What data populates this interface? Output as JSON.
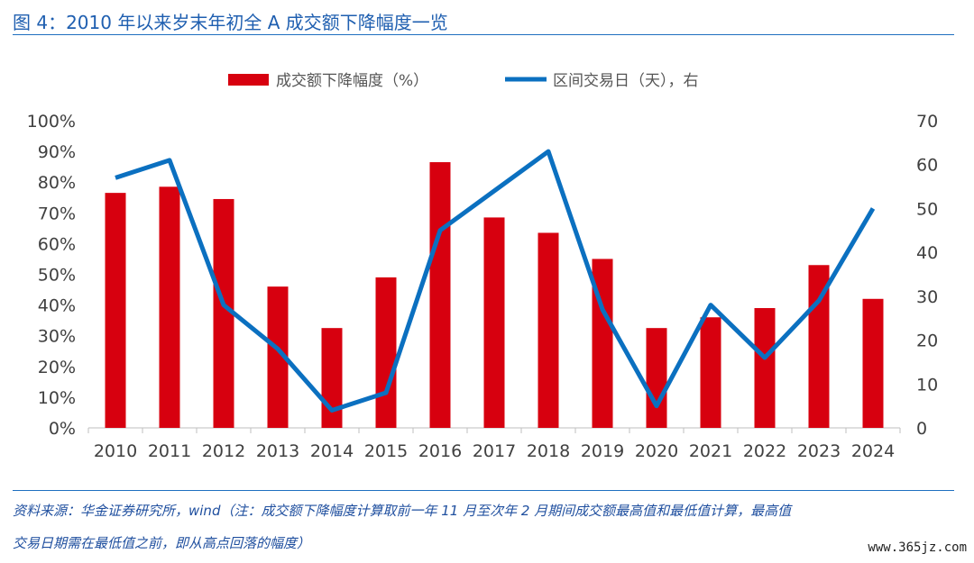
{
  "figure": {
    "title": "图 4：2010 年以来岁末年初全 A 成交额下降幅度一览",
    "source_line1": "资料来源：华金证券研究所，wind（注：成交额下降幅度计算取前一年 11 月至次年 2 月期间成交额最高值和最低值计算，最高值",
    "source_line2": "交易日期需在最低值之前，即从高点回落的幅度）",
    "watermark": "www.365jz.com"
  },
  "colors": {
    "bar": "#d7000f",
    "line": "#0b70c0",
    "title": "#1f5fb0",
    "rule": "#1f6fc0"
  },
  "chart_data": {
    "type": "bar",
    "categories": [
      "2010",
      "2011",
      "2012",
      "2013",
      "2014",
      "2015",
      "2016",
      "2017",
      "2018",
      "2019",
      "2020",
      "2021",
      "2022",
      "2023",
      "2024"
    ],
    "series": [
      {
        "name": "成交额下降幅度（%）",
        "type": "bar",
        "axis": "left",
        "values": [
          76.5,
          78.5,
          74.5,
          46,
          32.5,
          49,
          86.5,
          68.5,
          63.5,
          55,
          32.5,
          36,
          39,
          53,
          42
        ]
      },
      {
        "name": "区间交易日（天），右",
        "type": "line",
        "axis": "right",
        "values": [
          57,
          61,
          28,
          18,
          4,
          8,
          45,
          54,
          63,
          27,
          5,
          28,
          16,
          29,
          50
        ]
      }
    ],
    "y_left": {
      "min": 0,
      "max": 100,
      "ticks": [
        "0%",
        "10%",
        "20%",
        "30%",
        "40%",
        "50%",
        "60%",
        "70%",
        "80%",
        "90%",
        "100%"
      ]
    },
    "y_right": {
      "min": 0,
      "max": 70,
      "ticks": [
        "0",
        "10",
        "20",
        "30",
        "40",
        "50",
        "60",
        "70"
      ]
    },
    "grid": false,
    "legend_position": "top"
  }
}
